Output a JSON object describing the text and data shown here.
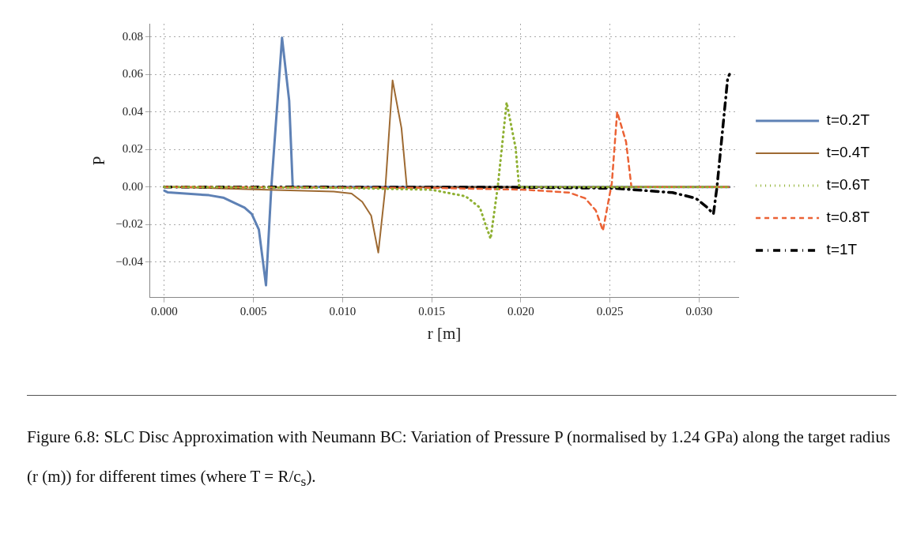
{
  "chart_data": {
    "type": "line",
    "xlabel": "r [m]",
    "ylabel": "P",
    "xlim": [
      -0.0008,
      0.0322
    ],
    "ylim": [
      -0.059,
      0.087
    ],
    "xticks": [
      {
        "value": 0,
        "label": "0.000"
      },
      {
        "value": 0.005,
        "label": "0.005"
      },
      {
        "value": 0.01,
        "label": "0.010"
      },
      {
        "value": 0.015,
        "label": "0.015"
      },
      {
        "value": 0.02,
        "label": "0.020"
      },
      {
        "value": 0.025,
        "label": "0.025"
      },
      {
        "value": 0.03,
        "label": "0.030"
      }
    ],
    "yticks": [
      {
        "value": -0.04,
        "label": "−0.04"
      },
      {
        "value": -0.02,
        "label": "−0.02"
      },
      {
        "value": 0,
        "label": "0.00"
      },
      {
        "value": 0.02,
        "label": "0.02"
      },
      {
        "value": 0.04,
        "label": "0.04"
      },
      {
        "value": 0.06,
        "label": "0.06"
      },
      {
        "value": 0.08,
        "label": "0.08"
      }
    ],
    "grid": true,
    "legend": "right",
    "marker": "none",
    "series": [
      {
        "name": "t=0.2T",
        "color": "#5e81b5",
        "line_style": "solid",
        "x": [
          0,
          0.0002,
          0.0025,
          0.0033,
          0.0045,
          0.0049,
          0.0053,
          0.0057,
          0.006,
          0.0066,
          0.007,
          0.0072,
          0.01,
          0.02,
          0.0317
        ],
        "values": [
          -0.002,
          -0.0029,
          -0.0044,
          -0.0057,
          -0.011,
          -0.0144,
          -0.0227,
          -0.0524,
          0,
          0.0795,
          0.046,
          0,
          0,
          0,
          0
        ]
      },
      {
        "name": "t=0.4T",
        "color": "#9e6a32",
        "line_style": "solid",
        "x": [
          0,
          0.002,
          0.005,
          0.0095,
          0.0105,
          0.0111,
          0.0116,
          0.012,
          0.0124,
          0.0128,
          0.0133,
          0.0136,
          0.02,
          0.0317
        ],
        "values": [
          0,
          -0.0005,
          -0.0013,
          -0.0025,
          -0.0035,
          -0.0079,
          -0.0153,
          -0.035,
          0,
          0.0568,
          0.0314,
          0,
          0,
          0
        ]
      },
      {
        "name": "t=0.6T",
        "color": "#8fb032",
        "line_style": "dotted",
        "x": [
          0,
          0.01,
          0.015,
          0.0169,
          0.0177,
          0.018,
          0.0183,
          0.0187,
          0.0192,
          0.0197,
          0.0199,
          0.025,
          0.0317
        ],
        "values": [
          0,
          -0.0005,
          -0.0015,
          -0.005,
          -0.011,
          -0.0196,
          -0.0276,
          0,
          0.045,
          0.021,
          0,
          0,
          0
        ]
      },
      {
        "name": "t=0.8T",
        "color": "#eb6235",
        "line_style": "dashed",
        "x": [
          0,
          0.015,
          0.0203,
          0.0227,
          0.0236,
          0.0242,
          0.0246,
          0.0251,
          0.0254,
          0.0259,
          0.0262,
          0.028,
          0.0317
        ],
        "values": [
          0,
          -0.0005,
          -0.0015,
          -0.003,
          -0.006,
          -0.0125,
          -0.0233,
          0.002,
          0.04,
          0.024,
          0,
          0,
          0
        ]
      },
      {
        "name": "t=1T",
        "color": "#000000",
        "line_style": "dashdot",
        "x": [
          0,
          0.02,
          0.0252,
          0.0285,
          0.0298,
          0.0304,
          0.0308,
          0.031,
          0.0316,
          0.0317
        ],
        "values": [
          0,
          -0.0002,
          -0.0007,
          -0.003,
          -0.006,
          -0.0105,
          -0.0144,
          0,
          0.058,
          0.06
        ]
      }
    ],
    "annotations": [
      "Figure 6.8: SLC Disc Approximation with Neumann BC: Variation of Pressure P (normalised by 1.24 GPa) along the target radius (r (m)) for different times (where T = R/c$_{s}$)."
    ]
  }
}
